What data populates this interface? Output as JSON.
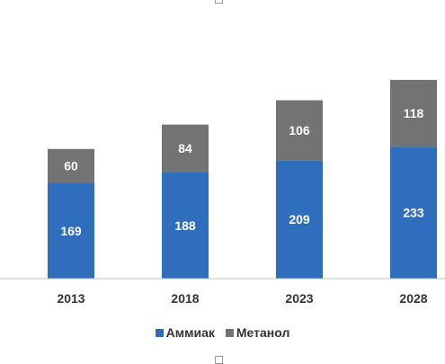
{
  "chart_data": {
    "type": "bar",
    "stacked": true,
    "categories": [
      "2013",
      "2018",
      "2023",
      "2028"
    ],
    "series": [
      {
        "name": "Аммиак",
        "values": [
          169,
          188,
          209,
          233
        ],
        "color": "#2e6ebd"
      },
      {
        "name": "Метанол",
        "values": [
          60,
          84,
          106,
          118
        ],
        "color": "#737373"
      }
    ],
    "title": "",
    "xlabel": "",
    "ylabel": "",
    "ylim": [
      0,
      360
    ],
    "grid": false,
    "legend_position": "bottom"
  }
}
